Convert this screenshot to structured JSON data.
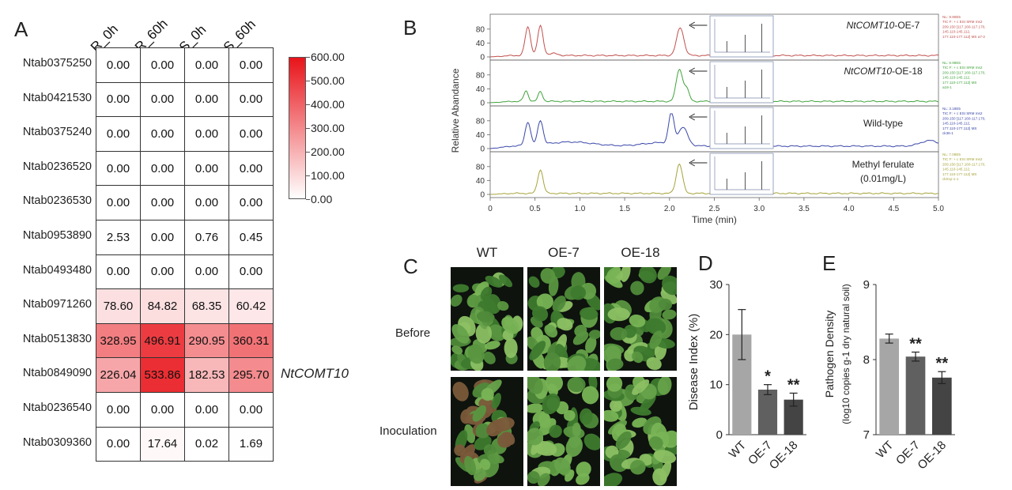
{
  "panel_labels": {
    "a": "A",
    "b": "B",
    "c": "C",
    "d": "D",
    "e": "E"
  },
  "chart_data": [
    {
      "panel": "A",
      "type": "heatmap",
      "columns": [
        "R_0h",
        "R_60h",
        "S_0h",
        "S_60h"
      ],
      "rows": [
        "Ntab0375250",
        "Ntab0421530",
        "Ntab0375240",
        "Ntab0236520",
        "Ntab0236530",
        "Ntab0953890",
        "Ntab0493480",
        "Ntab0971260",
        "Ntab0513830",
        "Ntab0849090",
        "Ntab0236540",
        "Ntab0309360"
      ],
      "values": [
        [
          0.0,
          0.0,
          0.0,
          0.0
        ],
        [
          0.0,
          0.0,
          0.0,
          0.0
        ],
        [
          0.0,
          0.0,
          0.0,
          0.0
        ],
        [
          0.0,
          0.0,
          0.0,
          0.0
        ],
        [
          0.0,
          0.0,
          0.0,
          0.0
        ],
        [
          2.53,
          0.0,
          0.76,
          0.45
        ],
        [
          0.0,
          0.0,
          0.0,
          0.0
        ],
        [
          78.6,
          84.82,
          68.35,
          60.42
        ],
        [
          328.95,
          496.91,
          290.95,
          360.31
        ],
        [
          226.04,
          533.86,
          182.53,
          295.7
        ],
        [
          0.0,
          0.0,
          0.0,
          0.0
        ],
        [
          0.0,
          17.64,
          0.02,
          1.69
        ]
      ],
      "cell_labels": [
        [
          "0.00",
          "0.00",
          "0.00",
          "0.00"
        ],
        [
          "0.00",
          "0.00",
          "0.00",
          "0.00"
        ],
        [
          "0.00",
          "0.00",
          "0.00",
          "0.00"
        ],
        [
          "0.00",
          "0.00",
          "0.00",
          "0.00"
        ],
        [
          "0.00",
          "0.00",
          "0.00",
          "0.00"
        ],
        [
          "2.53",
          "0.00",
          "0.76",
          "0.45"
        ],
        [
          "0.00",
          "0.00",
          "0.00",
          "0.00"
        ],
        [
          "78.60",
          "84.82",
          "68.35",
          "60.42"
        ],
        [
          "328.95",
          "496.91",
          "290.95",
          "360.31"
        ],
        [
          "226.04",
          "533.86",
          "182.53",
          "295.70"
        ],
        [
          "0.00",
          "0.00",
          "0.00",
          "0.00"
        ],
        [
          "0.00",
          "17.64",
          "0.02",
          "1.69"
        ]
      ],
      "colorbar": {
        "min": 0,
        "max": 600,
        "ticks": [
          "600.00",
          "500.00",
          "400.00",
          "300.00",
          "200.00",
          "100.00",
          "0.00"
        ],
        "low_color": "#ffffff",
        "high_color": "#e8141a"
      },
      "annotation": {
        "row": "Ntab0849090",
        "text": "NtCOMT10"
      }
    },
    {
      "panel": "B",
      "type": "line",
      "xlabel": "Time (min)",
      "ylabel": "Relative Abandance",
      "xlim": [
        0,
        5
      ],
      "xticks": [
        "0",
        "0.5",
        "1.0",
        "1.5",
        "2.0",
        "2.5",
        "3.0",
        "3.5",
        "4.0",
        "4.5",
        "5.0"
      ],
      "yticks": [
        "0",
        "40",
        "80"
      ],
      "ylim": [
        0,
        100
      ],
      "series": [
        {
          "name": "OE-7",
          "label_italic": "NtCOMT10",
          "label_suffix": "-OE-7",
          "color": "#c0504d",
          "info": [
            "NL: 9.90E5",
            "TIC F: + c ESI SRM ms2",
            "209.150 [117.160-117.170,",
            "145.110-145.112,",
            "177.110-177.112] MS a7-2"
          ],
          "peaks": [
            {
              "x": 0.42,
              "y": 82,
              "w": 0.03
            },
            {
              "x": 0.56,
              "y": 85,
              "w": 0.03
            },
            {
              "x": 2.12,
              "y": 80,
              "w": 0.04
            },
            {
              "x": 0.7,
              "y": 6,
              "w": 0.05
            }
          ],
          "baseline": 4
        },
        {
          "name": "OE-18",
          "label_italic": "NtCOMT10",
          "label_suffix": "-OE-18",
          "color": "#3fa33a",
          "info": [
            "NL: 9.99E5",
            "TIC F: + c ESI SRM ms2",
            "209.150 [117.160-117.170,",
            "145.110-145.112,",
            "177.110-177.112] MS",
            "a18-1"
          ],
          "peaks": [
            {
              "x": 0.4,
              "y": 30,
              "w": 0.025
            },
            {
              "x": 0.56,
              "y": 28,
              "w": 0.025
            },
            {
              "x": 2.11,
              "y": 92,
              "w": 0.035
            },
            {
              "x": 2.19,
              "y": 35,
              "w": 0.03
            }
          ],
          "baseline": 4
        },
        {
          "name": "Wild-type",
          "label_italic": "",
          "label_suffix": "Wild-type",
          "color": "#3a47a8",
          "info": [
            "NL: 3.18E5",
            "TIC F: + c ESI SRM ms2",
            "209.150 [117.160-117.170,",
            "145.110-145.112,",
            "177.110-177.112] MS",
            "ck36-1"
          ],
          "peaks": [
            {
              "x": 0.42,
              "y": 68,
              "w": 0.03
            },
            {
              "x": 0.56,
              "y": 70,
              "w": 0.03
            },
            {
              "x": 2.02,
              "y": 88,
              "w": 0.03
            },
            {
              "x": 2.15,
              "y": 50,
              "w": 0.05
            },
            {
              "x": 0.9,
              "y": 12,
              "w": 0.25
            },
            {
              "x": 1.9,
              "y": 10,
              "w": 0.2
            },
            {
              "x": 4.9,
              "y": 16,
              "w": 0.1
            }
          ],
          "baseline": 7
        },
        {
          "name": "Methyl ferulate",
          "label_italic": "",
          "label_suffix": "Methyl ferulate",
          "label_line2": "(0.01mg/L)",
          "color": "#a6a33a",
          "info": [
            "NL: 7.09E5",
            "TIC F: + c ESI SRM ms2",
            "209.150 [117.160-117.170,",
            "145.110-145.112,",
            "177.110-177.112] MS",
            "ck01p-1-1"
          ],
          "peaks": [
            {
              "x": 0.56,
              "y": 68,
              "w": 0.03
            },
            {
              "x": 2.11,
              "y": 85,
              "w": 0.035
            }
          ],
          "baseline": 3
        }
      ]
    },
    {
      "panel": "D",
      "type": "bar",
      "categories": [
        "WT",
        "OE-7",
        "OE-18"
      ],
      "values": [
        20.0,
        9.0,
        7.0
      ],
      "errors": [
        5.0,
        1.0,
        1.3
      ],
      "significance": [
        "",
        "*",
        "**"
      ],
      "bar_colors": [
        "#a6a6a6",
        "#606060",
        "#444444"
      ],
      "ylabel": "Disease Index (%)",
      "ylim": [
        0,
        30
      ],
      "yticks": [
        "0",
        "10",
        "20",
        "30"
      ]
    },
    {
      "panel": "E",
      "type": "bar",
      "categories": [
        "WT",
        "OE-7",
        "OE-18"
      ],
      "values": [
        8.28,
        8.04,
        7.76
      ],
      "errors": [
        0.06,
        0.06,
        0.08
      ],
      "significance": [
        "",
        "**",
        "**"
      ],
      "bar_colors": [
        "#a6a6a6",
        "#606060",
        "#444444"
      ],
      "ylabel_line1": "Pathogen Density",
      "ylabel_line2": "(log10 copies g-1 dry natural soil)",
      "ylim": [
        7,
        9
      ],
      "yticks": [
        "7",
        "8",
        "9"
      ]
    }
  ],
  "panel_c": {
    "columns": [
      "WT",
      "OE-7",
      "OE-18"
    ],
    "rows": [
      "Before",
      "Inoculation"
    ]
  }
}
